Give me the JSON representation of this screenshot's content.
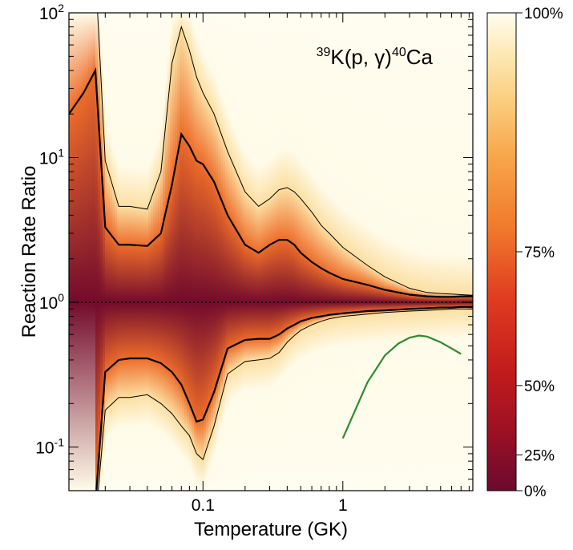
{
  "chart_data": {
    "type": "area",
    "title": "",
    "annotation": {
      "mass_a": "39",
      "pre": "K(p, γ)",
      "mass_b": "40",
      "post": "Ca"
    },
    "xlabel": "Temperature (GK)",
    "ylabel": "Reaction Rate Ratio",
    "x_scale": "log",
    "y_scale": "log",
    "xlim": [
      0.011,
      8.5
    ],
    "ylim": [
      0.05,
      100
    ],
    "x_ticks": [
      {
        "value": 0.1,
        "label": "0.1"
      },
      {
        "value": 1,
        "label": "1"
      }
    ],
    "y_ticks": [
      {
        "value": 0.1,
        "base": "10",
        "exp": "-1"
      },
      {
        "value": 1,
        "base": "10",
        "exp": "0"
      },
      {
        "value": 10,
        "base": "10",
        "exp": "1"
      },
      {
        "value": 100,
        "base": "10",
        "exp": "2"
      }
    ],
    "reference_line": {
      "y": 1,
      "style": "dotted"
    },
    "colorbar": {
      "labels": [
        "100%",
        "75%",
        "50%",
        "25%",
        "0%"
      ],
      "stops": [
        {
          "pct": 0,
          "color": "#6b0a2e"
        },
        {
          "pct": 12,
          "color": "#9a1024"
        },
        {
          "pct": 25,
          "color": "#c21c1c"
        },
        {
          "pct": 40,
          "color": "#e03b20"
        },
        {
          "pct": 55,
          "color": "#f07a2c"
        },
        {
          "pct": 70,
          "color": "#f8a64a"
        },
        {
          "pct": 82,
          "color": "#fbcf80"
        },
        {
          "pct": 92,
          "color": "#fdeab8"
        },
        {
          "pct": 100,
          "color": "#fffdf0"
        }
      ]
    },
    "temperatures": [
      0.011,
      0.014,
      0.017,
      0.02,
      0.025,
      0.03,
      0.04,
      0.05,
      0.06,
      0.07,
      0.08,
      0.09,
      0.1,
      0.12,
      0.15,
      0.2,
      0.25,
      0.3,
      0.35,
      0.4,
      0.45,
      0.5,
      0.6,
      0.7,
      0.8,
      1,
      1.5,
      2,
      3,
      4,
      5,
      6,
      7,
      8.5
    ],
    "bands": {
      "p97_5": [
        130,
        180,
        200,
        9.5,
        4.6,
        4.6,
        4.4,
        8,
        45,
        80,
        55,
        36,
        28,
        20,
        11,
        5.8,
        4.6,
        5.2,
        6.0,
        6.2,
        5.8,
        5.2,
        4.2,
        3.4,
        3.0,
        2.4,
        1.8,
        1.5,
        1.25,
        1.17,
        1.15,
        1.14,
        1.13,
        1.12
      ],
      "p84": [
        20,
        28,
        40,
        3.3,
        2.5,
        2.5,
        2.45,
        3.0,
        6.5,
        14.5,
        12,
        9.5,
        9.0,
        6.8,
        4.0,
        2.5,
        2.2,
        2.5,
        2.7,
        2.7,
        2.5,
        2.2,
        1.9,
        1.72,
        1.6,
        1.45,
        1.32,
        1.22,
        1.13,
        1.1,
        1.09,
        1.09,
        1.1,
        1.1
      ],
      "p16": [
        0.02,
        0.03,
        0.04,
        0.33,
        0.4,
        0.41,
        0.41,
        0.38,
        0.33,
        0.27,
        0.2,
        0.15,
        0.155,
        0.24,
        0.48,
        0.55,
        0.56,
        0.56,
        0.6,
        0.66,
        0.7,
        0.74,
        0.78,
        0.8,
        0.82,
        0.84,
        0.87,
        0.88,
        0.9,
        0.91,
        0.92,
        0.92,
        0.93,
        0.93
      ],
      "p2_5": [
        0.015,
        0.02,
        0.03,
        0.18,
        0.22,
        0.22,
        0.23,
        0.2,
        0.17,
        0.14,
        0.12,
        0.09,
        0.082,
        0.14,
        0.32,
        0.39,
        0.4,
        0.41,
        0.45,
        0.53,
        0.59,
        0.64,
        0.7,
        0.74,
        0.77,
        0.8,
        0.83,
        0.85,
        0.87,
        0.88,
        0.89,
        0.9,
        0.9,
        0.9
      ]
    },
    "line_series": {
      "color": "#2e8b2e",
      "x": [
        1.0,
        1.5,
        2.0,
        2.5,
        3.0,
        3.5,
        4.0,
        5.0,
        6.0,
        7.0
      ],
      "y": [
        0.115,
        0.28,
        0.43,
        0.52,
        0.57,
        0.59,
        0.58,
        0.53,
        0.48,
        0.44
      ]
    }
  }
}
